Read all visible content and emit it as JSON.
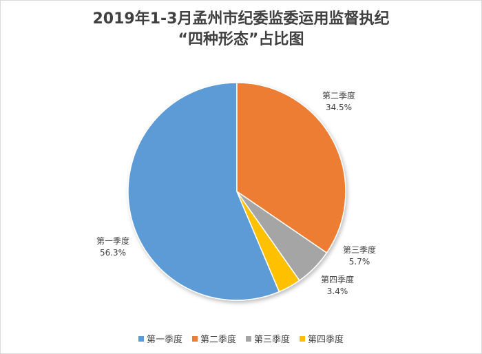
{
  "chart_data": {
    "type": "pie",
    "title": "2019年1-3月孟州市纪委监委运用监督执纪“四种形态”占比图",
    "title_lines": [
      "2019年1-3月孟州市纪委监委运用监督执纪",
      "“四种形态”占比图"
    ],
    "categories": [
      "第一季度",
      "第二季度",
      "第三季度",
      "第四季度"
    ],
    "values": [
      56.3,
      34.5,
      5.7,
      3.4
    ],
    "value_labels": [
      "56.3%",
      "34.5%",
      "5.7%",
      "3.4%"
    ],
    "colors": [
      "#5b9bd5",
      "#ed7d31",
      "#a5a5a5",
      "#ffc000"
    ],
    "legend_position": "bottom"
  }
}
